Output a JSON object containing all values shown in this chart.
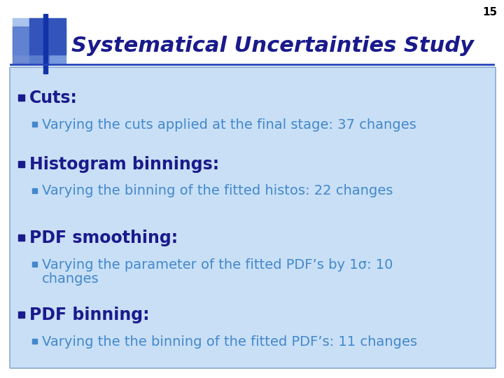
{
  "page_number": "15",
  "title": "Systematical Uncertainties Study",
  "background_color": "#ffffff",
  "content_bg_color": "#c8dff5",
  "content_border_color": "#8aaad0",
  "title_color": "#1a1a8c",
  "bullet_color": "#1a1a8c",
  "sub_bullet_color": "#4488cc",
  "page_num_color": "#000000",
  "bullets": [
    {
      "text": "Cuts:",
      "sub": [
        "Varying the cuts applied at the final stage: 37 changes"
      ]
    },
    {
      "text": "Histogram binnings:",
      "sub": [
        "Varying the binning of the fitted histos: 22 changes"
      ]
    },
    {
      "text": "PDF smoothing:",
      "sub": [
        "Varying the parameter of the fitted PDF’s by 1σ: 10\nchanges"
      ]
    },
    {
      "text": "PDF binning:",
      "sub": [
        "Varying the the binning of the fitted PDF’s: 11 changes"
      ]
    }
  ],
  "title_font_size": 22,
  "bullet_font_size": 17,
  "sub_bullet_font_size": 14,
  "page_num_font_size": 11
}
